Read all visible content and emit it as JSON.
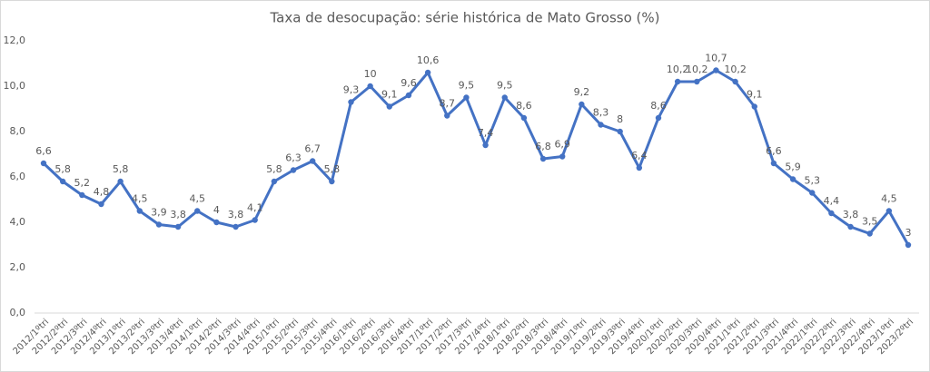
{
  "chart_data": {
    "type": "line",
    "title": "Taxa de desocupação: série histórica de Mato Grosso (%)",
    "categories": [
      "2012/1ºtri",
      "2012/2ºtri",
      "2012/3ºtri",
      "2012/4ºtri",
      "2013/1ºtri",
      "2013/2ºtri",
      "2013/3ºtri",
      "2013/4ºtri",
      "2014/1ºtri",
      "2014/2ºtri",
      "2014/3ºtri",
      "2014/4ºtri",
      "2015/1ºtri",
      "2015/2ºtri",
      "2015/3ºtri",
      "2015/4ºtri",
      "2016/1ºtri",
      "2016/2ºtri",
      "2016/3ºtri",
      "2016/4ºtri",
      "2017/1ºtri",
      "2017/2ºtri",
      "2017/3ºtri",
      "2017/4ºtri",
      "2018/1ºtri",
      "2018/2ºtri",
      "2018/3ºtri",
      "2018/4ºtri",
      "2019/1ºtri",
      "2019/2ºtri",
      "2019/3ºtri",
      "2019/4ºtri",
      "2020/1ºtri",
      "2020/2ºtri",
      "2020/3ºtri",
      "2020/4ºtri",
      "2021/1ºtri",
      "2021/2ºtri",
      "2021/3ºtri",
      "2021/4ºtri",
      "2022/1ºtri",
      "2022/2ºtri",
      "2022/3ºtri",
      "2022/4ºtri",
      "2023/1ºtri",
      "2023/2ºtri"
    ],
    "series": [
      {
        "color": "#4472c4",
        "values": [
          6.6,
          5.8,
          5.2,
          4.8,
          5.8,
          4.5,
          3.9,
          3.8,
          4.5,
          4,
          3.8,
          4.1,
          5.8,
          6.3,
          6.7,
          5.8,
          9.3,
          10,
          9.1,
          9.6,
          10.6,
          8.7,
          9.5,
          7.4,
          9.5,
          8.6,
          6.8,
          6.9,
          9.2,
          8.3,
          8,
          6.4,
          8.6,
          10.2,
          10.2,
          10.7,
          10.2,
          9.1,
          6.6,
          5.9,
          5.3,
          4.4,
          3.8,
          3.5,
          4.5,
          3
        ],
        "value_labels": [
          "6,6",
          "5,8",
          "5,2",
          "4,8",
          "5,8",
          "4,5",
          "3,9",
          "3,8",
          "4,5",
          "4",
          "3,8",
          "4,1",
          "5,8",
          "6,3",
          "6,7",
          "5,8",
          "9,3",
          "10",
          "9,1",
          "9,6",
          "10,6",
          "8,7",
          "9,5",
          "7,4",
          "9,5",
          "8,6",
          "6,8",
          "6,9",
          "9,2",
          "8,3",
          "8",
          "6,4",
          "8,6",
          "10,2",
          "10,2",
          "10,7",
          "10,2",
          "9,1",
          "6,6",
          "5,9",
          "5,3",
          "4,4",
          "3,8",
          "3,5",
          "4,5",
          "3"
        ]
      }
    ],
    "ylim": [
      0,
      12
    ],
    "yticks": [
      {
        "value": 0,
        "label": "0,0"
      },
      {
        "value": 2,
        "label": "2,0"
      },
      {
        "value": 4,
        "label": "4,0"
      },
      {
        "value": 6,
        "label": "6,0"
      },
      {
        "value": 8,
        "label": "8,0"
      },
      {
        "value": 10,
        "label": "10,0"
      },
      {
        "value": 12,
        "label": "12,0"
      }
    ],
    "grid": false
  }
}
